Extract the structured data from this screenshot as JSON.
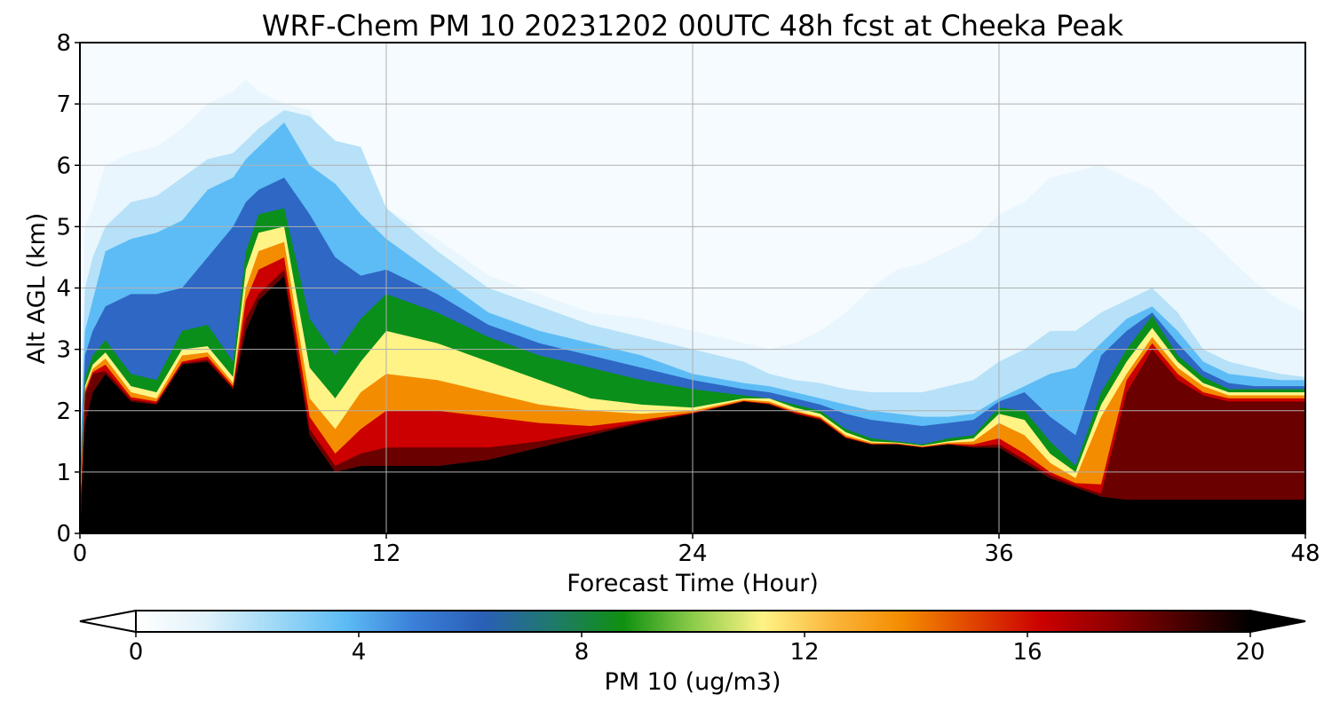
{
  "chart_data": {
    "type": "heatmap",
    "title": "WRF-Chem PM 10  20231202 00UTC 48h fcst at Cheeka Peak",
    "xlabel": "Forecast Time (Hour)",
    "ylabel": "Alt AGL (km)",
    "xlim": [
      0,
      48
    ],
    "ylim": [
      0,
      8
    ],
    "x_ticks": [
      "0",
      "12",
      "24",
      "36",
      "48"
    ],
    "y_ticks": [
      "0",
      "1",
      "2",
      "3",
      "4",
      "5",
      "6",
      "7",
      "8"
    ],
    "grid": true,
    "colorbar": {
      "label": "PM 10  (ug/m3)",
      "range": [
        0,
        20
      ],
      "ticks": [
        "0",
        "4",
        "8",
        "12",
        "16",
        "20"
      ],
      "extend": "both",
      "colors": [
        "#ffffff",
        "#e1f2fb",
        "#9fd9f6",
        "#5dbcf5",
        "#3a7fd8",
        "#2a5fb6",
        "#1f7a6a",
        "#109010",
        "#8ccc4a",
        "#fff385",
        "#fbb63c",
        "#f48c00",
        "#e04500",
        "#cc0000",
        "#900000",
        "#4a0000",
        "#000000"
      ]
    },
    "terrain_profile": {
      "x": [
        0,
        0.2,
        0.5,
        1,
        2,
        3,
        4,
        5,
        6,
        6.5,
        7,
        8,
        9,
        10,
        11,
        12,
        14,
        16,
        18,
        20,
        22,
        24,
        26,
        27,
        28,
        29,
        30,
        31,
        32,
        33,
        34,
        35,
        36,
        37,
        38,
        39,
        40,
        41,
        42,
        43,
        44,
        45,
        46,
        47,
        48
      ],
      "y": [
        0,
        1.8,
        2.3,
        2.6,
        2.15,
        2.1,
        2.75,
        2.8,
        2.35,
        3.3,
        3.8,
        4.2,
        1.6,
        1.0,
        1.1,
        1.1,
        1.1,
        1.2,
        1.4,
        1.6,
        1.8,
        1.95,
        2.15,
        2.1,
        1.95,
        1.85,
        1.55,
        1.45,
        1.45,
        1.4,
        1.45,
        1.4,
        1.4,
        1.15,
        0.9,
        0.75,
        0.6,
        0.55,
        0.55,
        0.55,
        0.55,
        0.55,
        0.55,
        0.55,
        0.55
      ]
    },
    "layers": [
      {
        "value": 0.5,
        "color": "#e9f6fd",
        "top": [
          1.5,
          5.0,
          5.3,
          6.0,
          6.2,
          6.3,
          6.6,
          7.0,
          7.2,
          7.4,
          7.2,
          7.0,
          6.9,
          6.0,
          5.5,
          5.3,
          4.8,
          4.2,
          3.9,
          3.6,
          3.5,
          3.3,
          3.1,
          3.0,
          3.1,
          3.3,
          3.6,
          4.0,
          4.3,
          4.4,
          4.6,
          4.8,
          5.2,
          5.4,
          5.8,
          5.9,
          6.0,
          5.8,
          5.6,
          5.2,
          4.9,
          4.5,
          4.1,
          3.8,
          3.6
        ]
      },
      {
        "value": 1.5,
        "color": "#b6e1f8",
        "top": [
          1.2,
          4.0,
          4.5,
          5.0,
          5.4,
          5.5,
          5.8,
          6.1,
          6.2,
          6.4,
          6.6,
          6.9,
          6.8,
          6.4,
          6.3,
          5.3,
          4.6,
          4.0,
          3.7,
          3.4,
          3.2,
          3.0,
          2.8,
          2.6,
          2.5,
          2.45,
          2.35,
          2.3,
          2.3,
          2.3,
          2.4,
          2.5,
          2.8,
          3.0,
          3.3,
          3.3,
          3.6,
          3.8,
          4.0,
          3.6,
          3.0,
          2.8,
          2.7,
          2.6,
          2.55
        ]
      },
      {
        "value": 3.0,
        "color": "#5dbcf5",
        "top": [
          1.0,
          3.3,
          3.8,
          4.6,
          4.8,
          4.9,
          5.1,
          5.6,
          5.8,
          6.1,
          6.3,
          6.7,
          6.0,
          5.7,
          5.2,
          4.8,
          4.2,
          3.6,
          3.3,
          3.1,
          2.9,
          2.6,
          2.45,
          2.4,
          2.3,
          2.2,
          2.1,
          2.0,
          1.95,
          1.9,
          1.9,
          1.95,
          2.2,
          2.4,
          2.6,
          2.7,
          3.1,
          3.5,
          3.7,
          3.3,
          2.8,
          2.6,
          2.55,
          2.5,
          2.5
        ]
      },
      {
        "value": 5.0,
        "color": "#2e67c4",
        "top": [
          0.8,
          2.9,
          3.3,
          3.7,
          3.9,
          3.9,
          4.0,
          4.5,
          5.0,
          5.4,
          5.6,
          5.8,
          5.2,
          4.5,
          4.2,
          4.3,
          3.9,
          3.4,
          3.1,
          2.9,
          2.7,
          2.5,
          2.35,
          2.3,
          2.2,
          2.1,
          1.95,
          1.85,
          1.8,
          1.75,
          1.8,
          1.85,
          2.15,
          2.3,
          1.9,
          1.6,
          2.9,
          3.3,
          3.6,
          3.1,
          2.65,
          2.45,
          2.4,
          2.4,
          2.4
        ]
      },
      {
        "value": 7.5,
        "color": "#0a8f1a",
        "top": [
          0.6,
          2.55,
          2.9,
          3.15,
          2.6,
          2.5,
          3.3,
          3.4,
          2.8,
          4.6,
          5.2,
          5.3,
          3.5,
          2.9,
          3.5,
          3.9,
          3.6,
          3.2,
          2.9,
          2.7,
          2.5,
          2.35,
          2.25,
          2.2,
          2.1,
          2.0,
          1.7,
          1.55,
          1.5,
          1.45,
          1.55,
          1.6,
          2.05,
          2.0,
          1.5,
          1.1,
          2.3,
          3.0,
          3.55,
          2.9,
          2.55,
          2.35,
          2.35,
          2.35,
          2.35
        ]
      },
      {
        "value": 10.0,
        "color": "#fff385",
        "top": [
          0.5,
          2.4,
          2.75,
          2.95,
          2.4,
          2.3,
          3.0,
          3.05,
          2.55,
          4.3,
          4.9,
          5.0,
          2.7,
          2.2,
          2.8,
          3.3,
          3.1,
          2.8,
          2.5,
          2.2,
          2.1,
          2.05,
          2.2,
          2.2,
          2.05,
          1.95,
          1.65,
          1.5,
          1.48,
          1.43,
          1.5,
          1.55,
          1.95,
          1.85,
          1.3,
          1.0,
          2.1,
          2.8,
          3.35,
          2.8,
          2.45,
          2.3,
          2.3,
          2.3,
          2.3
        ]
      },
      {
        "value": 13.0,
        "color": "#f48c00",
        "top": [
          0.4,
          2.35,
          2.68,
          2.85,
          2.3,
          2.2,
          2.9,
          2.95,
          2.45,
          4.0,
          4.6,
          4.75,
          2.2,
          1.7,
          2.3,
          2.6,
          2.5,
          2.3,
          2.1,
          2.0,
          1.95,
          2.0,
          2.18,
          2.15,
          2.0,
          1.9,
          1.6,
          1.48,
          1.47,
          1.42,
          1.48,
          1.5,
          1.8,
          1.6,
          1.15,
          0.9,
          1.9,
          2.6,
          3.2,
          2.7,
          2.4,
          2.25,
          2.25,
          2.25,
          2.25
        ]
      },
      {
        "value": 15.0,
        "color": "#cc0000",
        "top": [
          0.3,
          2.3,
          2.63,
          2.75,
          2.22,
          2.15,
          2.8,
          2.88,
          2.4,
          3.8,
          4.3,
          4.5,
          1.9,
          1.3,
          1.7,
          2.0,
          2.0,
          1.9,
          1.8,
          1.75,
          1.85,
          1.97,
          2.16,
          2.12,
          1.98,
          1.88,
          1.57,
          1.46,
          1.46,
          1.41,
          1.46,
          1.45,
          1.55,
          1.3,
          1.0,
          0.82,
          0.8,
          2.5,
          3.1,
          2.6,
          2.3,
          2.2,
          2.2,
          2.2,
          2.2
        ]
      },
      {
        "value": 18.0,
        "color": "#6a0000",
        "top": [
          0.2,
          2.25,
          2.6,
          2.65,
          2.18,
          2.12,
          2.77,
          2.83,
          2.37,
          3.5,
          3.9,
          4.3,
          1.7,
          1.1,
          1.3,
          1.4,
          1.4,
          1.4,
          1.5,
          1.65,
          1.82,
          1.96,
          2.15,
          2.11,
          1.96,
          1.86,
          1.56,
          1.45,
          1.45,
          1.4,
          1.45,
          1.42,
          1.45,
          1.2,
          0.95,
          0.78,
          0.65,
          2.3,
          3.0,
          2.5,
          2.25,
          2.15,
          2.15,
          2.15,
          2.15
        ]
      }
    ]
  }
}
